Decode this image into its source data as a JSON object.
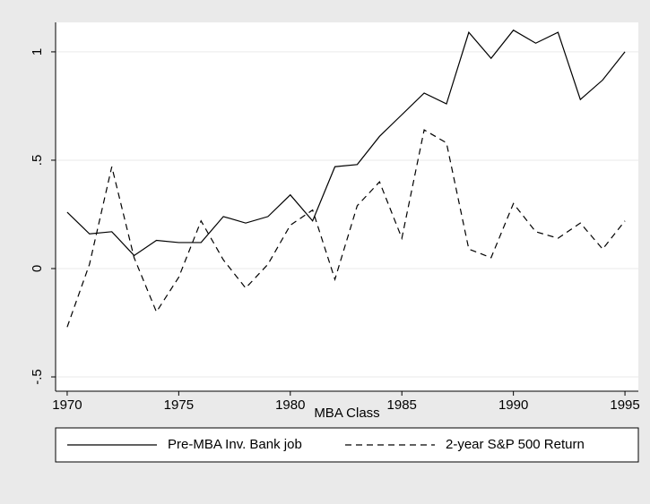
{
  "chart_data": {
    "type": "line",
    "x_label": "MBA Class",
    "x": [
      1970,
      1971,
      1972,
      1973,
      1974,
      1975,
      1976,
      1977,
      1978,
      1979,
      1980,
      1981,
      1982,
      1983,
      1984,
      1985,
      1986,
      1987,
      1988,
      1989,
      1990,
      1991,
      1992,
      1993,
      1994,
      1995
    ],
    "series": [
      {
        "name": "Pre-MBA Inv. Bank job",
        "color": "#000000",
        "dash": false,
        "values": [
          0.26,
          0.16,
          0.17,
          0.06,
          0.13,
          0.12,
          0.12,
          0.24,
          0.21,
          0.24,
          0.34,
          0.22,
          0.47,
          0.48,
          0.61,
          0.71,
          0.81,
          0.76,
          1.09,
          0.97,
          1.1,
          1.04,
          1.09,
          0.78,
          0.87,
          1.0
        ]
      },
      {
        "name": "2-year S&P 500 Return",
        "color": "#000000",
        "dash": true,
        "values": [
          -0.27,
          0.02,
          0.47,
          0.05,
          -0.2,
          -0.04,
          0.22,
          0.04,
          -0.09,
          0.02,
          0.2,
          0.27,
          -0.05,
          0.29,
          0.4,
          0.14,
          0.64,
          0.58,
          0.09,
          0.05,
          0.3,
          0.17,
          0.14,
          0.21,
          0.09,
          0.22
        ]
      }
    ],
    "xlim": [
      1969.48,
      1995.6
    ],
    "ylim": [
      -0.566,
      1.136
    ],
    "xticks": [
      1970,
      1975,
      1980,
      1985,
      1990,
      1995
    ],
    "yticks": [
      {
        "value": -0.5,
        "label": "-.5"
      },
      0,
      {
        "value": 0.5,
        "label": ".5"
      },
      1
    ],
    "grid": true,
    "legend": "bottom"
  }
}
